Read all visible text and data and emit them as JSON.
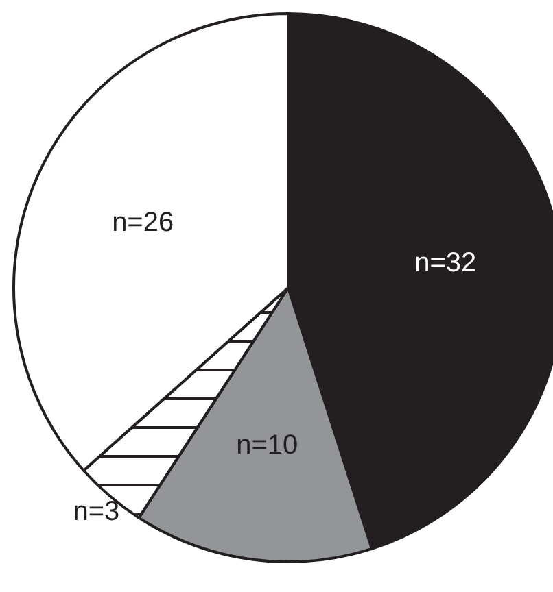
{
  "chart_data": {
    "type": "pie",
    "categories": [
      null,
      null,
      null,
      null
    ],
    "values": [
      32,
      10,
      3,
      26
    ],
    "colors": [
      "#231f20",
      "#939598",
      "#ffffff",
      "#ffffff"
    ],
    "value_labels": [
      "n=32",
      "n=10",
      "n=3",
      "n=26"
    ],
    "legend": false
  }
}
